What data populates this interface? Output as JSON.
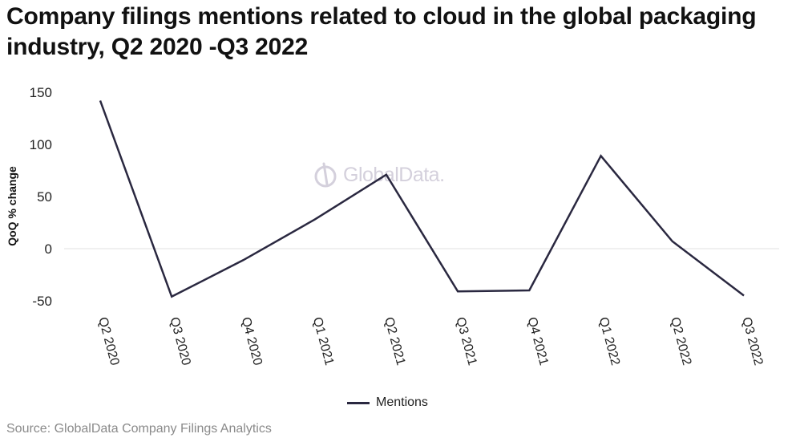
{
  "title": "Company filings mentions related to cloud in the global packaging industry, Q2 2020 -Q3 2022",
  "source": "Source: GlobalData Company Filings Analytics",
  "watermark": "GlobalData.",
  "colors": {
    "line": "#2a2840",
    "grid": "#e0e0e0",
    "watermark": "#d4d0dc"
  },
  "chart_data": {
    "type": "line",
    "title": "Company filings mentions related to cloud in the global packaging industry, Q2 2020 -Q3 2022",
    "xlabel": "",
    "ylabel": "QoQ % change",
    "categories": [
      "Q2 2020",
      "Q3 2020",
      "Q4 2020",
      "Q1 2021",
      "Q2 2021",
      "Q3 2021",
      "Q4 2021",
      "Q1 2022",
      "Q2 2022",
      "Q3 2022"
    ],
    "series": [
      {
        "name": "Mentions",
        "values": [
          142,
          -46,
          -11,
          28,
          71,
          -41,
          -40,
          89,
          7,
          -45
        ]
      }
    ],
    "yticks": [
      150,
      100,
      50,
      0,
      -50
    ],
    "ylim": [
      -50,
      150
    ],
    "grid": "zero line only",
    "legend": "bottom-center"
  }
}
